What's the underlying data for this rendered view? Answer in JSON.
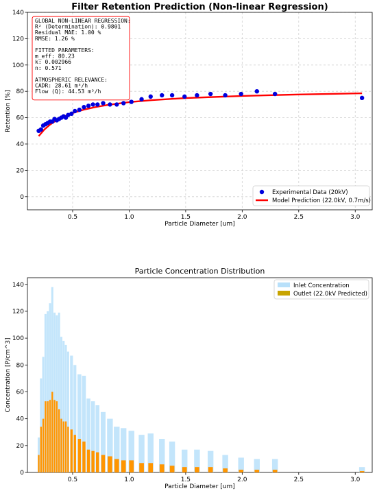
{
  "chart_data": [
    {
      "type": "scatter",
      "title": "Filter Retention Prediction (Non-linear Regression)",
      "xlabel": "Particle Diameter [um]",
      "ylabel": "Retention [%]",
      "xlim": [
        0.1,
        3.15
      ],
      "ylim": [
        -10,
        140
      ],
      "xticks": [
        0.5,
        1.0,
        1.5,
        2.0,
        2.5,
        3.0
      ],
      "xtick_labels": [
        "0.5",
        "1.0",
        "1.5",
        "2.0",
        "2.5",
        "3.0"
      ],
      "yticks": [
        0,
        20,
        40,
        60,
        80,
        100,
        120,
        140
      ],
      "ytick_labels": [
        "0",
        "20",
        "40",
        "60",
        "80",
        "100",
        "120",
        "140"
      ],
      "grid": true,
      "legend_position": "lower-right",
      "annotation_lines": [
        "GLOBAL NON-LINEAR REGRESSION:",
        "R² (Determination): 0.9801",
        "Residual MAE: 1.00 %",
        "RMSE: 1.26 %",
        "",
        "FITTED PARAMETERS:",
        "m_eff: 80.23",
        "k: 0.002966",
        "n: 0.571",
        "",
        "ATMOSPHERIC RELEVANCE:",
        "CADR: 28.61 m³/h",
        "Flow (Q): 44.53 m³/h"
      ],
      "series": [
        {
          "name": "Experimental Data (20kV)",
          "kind": "scatter",
          "color": "#0000dd",
          "x": [
            0.2,
            0.22,
            0.24,
            0.26,
            0.28,
            0.3,
            0.32,
            0.34,
            0.36,
            0.38,
            0.4,
            0.42,
            0.44,
            0.46,
            0.49,
            0.52,
            0.56,
            0.6,
            0.64,
            0.68,
            0.72,
            0.77,
            0.83,
            0.89,
            0.95,
            1.02,
            1.11,
            1.19,
            1.29,
            1.38,
            1.49,
            1.6,
            1.72,
            1.85,
            1.99,
            2.13,
            2.29,
            3.06
          ],
          "y": [
            50,
            51,
            54,
            55,
            56,
            57,
            57,
            59,
            58,
            59,
            60,
            61,
            60,
            62,
            63,
            65,
            66,
            68,
            69,
            70,
            70,
            71,
            70,
            70,
            71,
            72,
            74,
            76,
            77,
            77,
            76,
            77,
            78,
            77,
            78,
            80,
            78,
            75
          ]
        },
        {
          "name": "Model Prediction (22.0kV, 0.7m/s)",
          "kind": "line",
          "color": "#ff0000",
          "x": [
            0.2,
            0.25,
            0.3,
            0.35,
            0.4,
            0.5,
            0.6,
            0.7,
            0.8,
            1.0,
            1.2,
            1.5,
            2.0,
            2.5,
            3.06
          ],
          "y": [
            46.0,
            51.0,
            54.7,
            57.6,
            60.0,
            63.5,
            66.1,
            68.0,
            69.5,
            71.8,
            73.3,
            74.9,
            76.5,
            77.6,
            78.5
          ]
        }
      ]
    },
    {
      "type": "bar",
      "title": "Particle Concentration Distribution",
      "xlabel": "Particle Diameter [um]",
      "ylabel": "Concentration [P/cm^3]",
      "xlim": [
        0.1,
        3.15
      ],
      "ylim": [
        0,
        145
      ],
      "xticks": [
        0.5,
        1.0,
        1.5,
        2.0,
        2.5,
        3.0
      ],
      "xtick_labels": [
        "0.5",
        "1.0",
        "1.5",
        "2.0",
        "2.5",
        "3.0"
      ],
      "yticks": [
        0,
        20,
        40,
        60,
        80,
        100,
        120,
        140
      ],
      "ytick_labels": [
        "0",
        "20",
        "40",
        "60",
        "80",
        "100",
        "120",
        "140"
      ],
      "grid": false,
      "legend_position": "top-right",
      "x": [
        0.2,
        0.22,
        0.24,
        0.26,
        0.28,
        0.3,
        0.32,
        0.34,
        0.36,
        0.38,
        0.4,
        0.42,
        0.44,
        0.46,
        0.49,
        0.52,
        0.56,
        0.6,
        0.64,
        0.68,
        0.72,
        0.77,
        0.83,
        0.89,
        0.95,
        1.02,
        1.11,
        1.19,
        1.29,
        1.38,
        1.49,
        1.6,
        1.72,
        1.85,
        1.99,
        2.13,
        2.29,
        3.06
      ],
      "series": [
        {
          "name": "Inlet Concentration",
          "color": "#b8e0fa",
          "values": [
            26,
            70,
            86,
            118,
            120,
            126,
            138,
            119,
            117,
            119,
            101,
            98,
            95,
            90,
            87,
            80,
            73,
            72,
            55,
            53,
            50,
            45,
            40,
            34,
            33,
            31,
            28,
            29,
            25,
            23,
            17,
            17,
            16,
            13,
            11,
            10,
            10,
            4
          ]
        },
        {
          "name": "Outlet (22.0kV Predicted)",
          "color": "#ff9500",
          "legend_color": "#c8a400",
          "values": [
            13,
            34,
            40,
            53,
            53,
            54,
            60,
            54,
            53,
            47,
            40,
            38,
            38,
            34,
            32,
            28,
            25,
            23,
            17,
            16,
            15,
            13,
            12,
            10,
            9,
            9,
            7,
            7,
            6,
            5,
            4,
            4,
            4,
            3,
            2,
            2,
            2,
            1
          ]
        }
      ]
    }
  ]
}
